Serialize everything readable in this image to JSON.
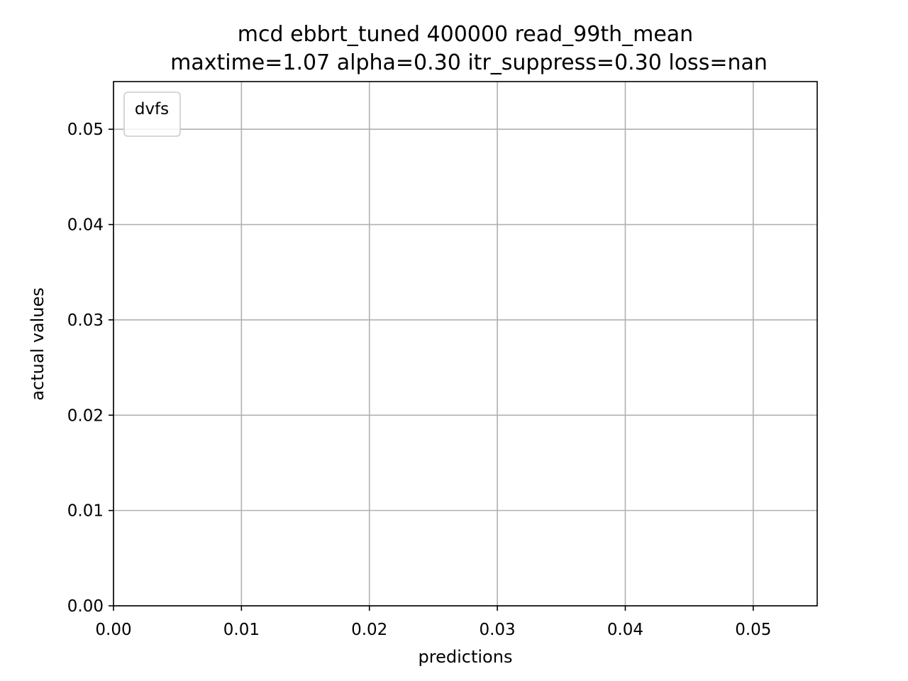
{
  "chart_data": {
    "type": "scatter",
    "title": "mcd ebbrt_tuned 400000 read_99th_mean",
    "subtitle": "maxtime=1.07 alpha=0.30 itr_suppress=0.30 loss=nan",
    "xlabel": "predictions",
    "ylabel": "actual values",
    "xlim": [
      0,
      0.055
    ],
    "ylim": [
      0,
      0.055
    ],
    "xticks": [
      0.0,
      0.01,
      0.02,
      0.03,
      0.04,
      0.05
    ],
    "yticks": [
      0.0,
      0.01,
      0.02,
      0.03,
      0.04,
      0.05
    ],
    "xtick_labels": [
      "0.00",
      "0.01",
      "0.02",
      "0.03",
      "0.04",
      "0.05"
    ],
    "ytick_labels": [
      "0.00",
      "0.01",
      "0.02",
      "0.03",
      "0.04",
      "0.05"
    ],
    "grid": true,
    "legend": {
      "title": "dvfs",
      "placement": "upper-left",
      "entries": []
    },
    "series": [],
    "colors": {
      "grid": "#b0b0b0",
      "axes": "#000000",
      "legend_border": "#cccccc"
    }
  }
}
